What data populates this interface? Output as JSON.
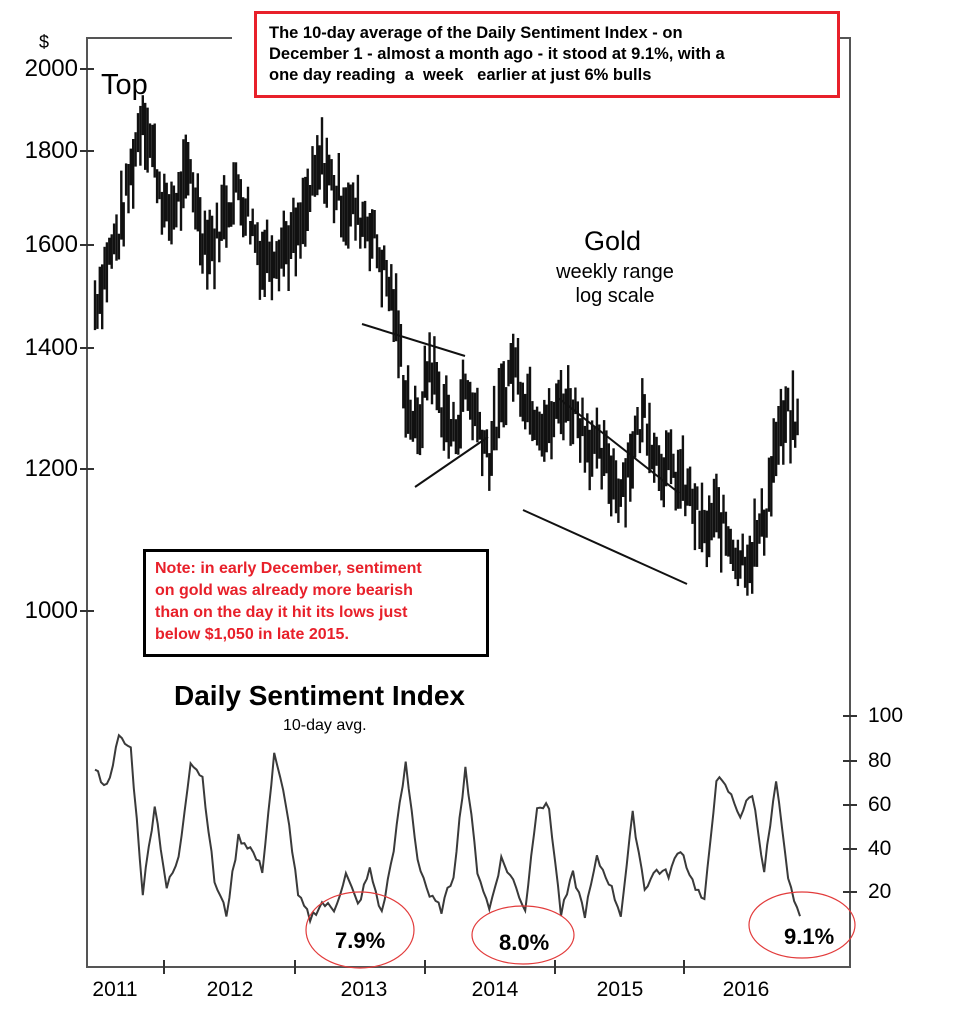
{
  "header": {
    "callout": "The 10-day average of the Daily Sentiment Index - on December 1 - almost a month ago - it stood at 9.1%, with a one day reading a week earlier at just 6% bulls",
    "callout_lines": [
      "The 10-day average of the Daily Sentiment Index - on",
      "December 1 - almost a month ago - it stood at 9.1%, with a",
      "one day reading  a  week   earlier at just 6% bulls"
    ]
  },
  "gold_panel": {
    "title": "Gold",
    "subtitle_lines": [
      "weekly range",
      "log scale"
    ],
    "top_label": "Top",
    "currency_symbol": "$",
    "y_ticks": [
      "2000",
      "1800",
      "1600",
      "1400",
      "1200",
      "1000"
    ]
  },
  "note": {
    "lines": [
      "Note: in early December, sentiment",
      "on gold was already more bearish",
      "than on the day it hit its lows just",
      "below $1,050 in late 2015."
    ]
  },
  "dsi_panel": {
    "title": "Daily Sentiment Index",
    "subtitle": "10-day avg.",
    "y_ticks": [
      "100",
      "80",
      "60",
      "40",
      "20"
    ],
    "annotations": [
      "7.9%",
      "8.0%",
      "9.1%"
    ]
  },
  "x_axis": {
    "years": [
      "2011",
      "2012",
      "2013",
      "2014",
      "2015",
      "2016"
    ]
  },
  "colors": {
    "accent_red": "#e8202a",
    "line": "#333333",
    "axis": "#555555",
    "bars": "#111111"
  },
  "chart_data": [
    {
      "type": "line",
      "title": "Gold",
      "subtitle": "weekly range, log scale",
      "ylabel": "$",
      "yscale": "log",
      "ylim": [
        950,
        2050
      ],
      "y_ticks": [
        1000,
        1200,
        1400,
        1600,
        1800,
        2000
      ],
      "x_ticks": [
        "2011",
        "2012",
        "2013",
        "2014",
        "2015",
        "2016"
      ],
      "annotations": [
        "Top (~$1,920, 2011)",
        "Descending trendlines / wedges 2013-2015",
        "Low just below $1,050 late 2015"
      ],
      "series": [
        {
          "name": "Gold weekly close (approx.)",
          "x": [
            2011.0,
            2011.1,
            2011.2,
            2011.3,
            2011.4,
            2011.5,
            2011.6,
            2011.7,
            2011.8,
            2011.9,
            2012.0,
            2012.1,
            2012.2,
            2012.3,
            2012.4,
            2012.5,
            2012.6,
            2012.7,
            2012.8,
            2012.9,
            2013.0,
            2013.1,
            2013.2,
            2013.3,
            2013.4,
            2013.5,
            2013.6,
            2013.7,
            2013.8,
            2013.9,
            2014.0,
            2014.1,
            2014.2,
            2014.3,
            2014.4,
            2014.5,
            2014.6,
            2014.7,
            2014.8,
            2014.9,
            2015.0,
            2015.1,
            2015.2,
            2015.3,
            2015.4,
            2015.5,
            2015.6,
            2015.7,
            2015.8,
            2015.9,
            2016.0,
            2016.1,
            2016.2,
            2016.3,
            2016.4,
            2016.5,
            2016.6,
            2016.7,
            2016.8,
            2016.9
          ],
          "values": [
            1480,
            1560,
            1620,
            1750,
            1900,
            1780,
            1650,
            1700,
            1750,
            1620,
            1600,
            1680,
            1720,
            1650,
            1570,
            1590,
            1600,
            1610,
            1700,
            1780,
            1720,
            1680,
            1660,
            1640,
            1560,
            1480,
            1320,
            1250,
            1380,
            1300,
            1250,
            1330,
            1280,
            1220,
            1300,
            1380,
            1320,
            1290,
            1260,
            1310,
            1300,
            1260,
            1220,
            1200,
            1170,
            1230,
            1290,
            1220,
            1200,
            1180,
            1150,
            1100,
            1130,
            1100,
            1070,
            1080,
            1120,
            1240,
            1280,
            1260
          ]
        }
      ]
    },
    {
      "type": "line",
      "title": "Daily Sentiment Index",
      "subtitle": "10-day avg.",
      "ylabel": "",
      "ylim": [
        0,
        100
      ],
      "y_ticks": [
        20,
        40,
        60,
        80,
        100
      ],
      "x_ticks": [
        "2011",
        "2012",
        "2013",
        "2014",
        "2015",
        "2016"
      ],
      "annotations": [
        {
          "label": "7.9%",
          "x": "2013"
        },
        {
          "label": "8.0%",
          "x": "2014"
        },
        {
          "label": "9.1%",
          "x": "2016 (Dec 1)"
        }
      ],
      "series": [
        {
          "name": "DSI 10-day avg (approx.)",
          "x": [
            2011.0,
            2011.1,
            2011.2,
            2011.3,
            2011.4,
            2011.5,
            2011.6,
            2011.7,
            2011.8,
            2011.9,
            2012.0,
            2012.1,
            2012.2,
            2012.3,
            2012.4,
            2012.5,
            2012.6,
            2012.7,
            2012.8,
            2012.9,
            2013.0,
            2013.1,
            2013.2,
            2013.3,
            2013.4,
            2013.5,
            2013.6,
            2013.7,
            2013.8,
            2013.9,
            2014.0,
            2014.1,
            2014.2,
            2014.3,
            2014.4,
            2014.5,
            2014.6,
            2014.7,
            2014.8,
            2014.9,
            2015.0,
            2015.1,
            2015.2,
            2015.3,
            2015.4,
            2015.5,
            2015.6,
            2015.7,
            2015.8,
            2015.9,
            2016.0,
            2016.1,
            2016.2,
            2016.3,
            2016.4,
            2016.5,
            2016.6,
            2016.7,
            2016.8,
            2016.9
          ],
          "values": [
            75,
            68,
            90,
            85,
            20,
            60,
            22,
            35,
            80,
            72,
            25,
            10,
            45,
            40,
            30,
            82,
            60,
            18,
            8,
            15,
            12,
            28,
            14,
            30,
            10,
            40,
            78,
            35,
            18,
            12,
            28,
            77,
            30,
            12,
            35,
            25,
            12,
            60,
            58,
            10,
            28,
            10,
            35,
            25,
            10,
            55,
            22,
            30,
            28,
            40,
            25,
            15,
            72,
            66,
            55,
            65,
            30,
            70,
            25,
            9
          ]
        }
      ]
    }
  ]
}
